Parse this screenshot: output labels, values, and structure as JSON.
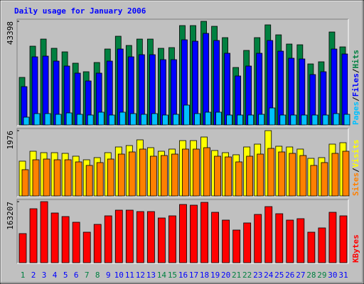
{
  "chart_data": [
    {
      "type": "bar",
      "title": "Daily usage for January 2006",
      "categories": [
        "1",
        "2",
        "3",
        "4",
        "5",
        "6",
        "7",
        "8",
        "9",
        "10",
        "11",
        "12",
        "13",
        "14",
        "15",
        "16",
        "17",
        "18",
        "19",
        "20",
        "21",
        "22",
        "23",
        "24",
        "25",
        "26",
        "27",
        "28",
        "29",
        "30",
        "31"
      ],
      "ylim": [
        0,
        43398
      ],
      "yticks": [
        43398
      ],
      "legend_separator": "/",
      "series": [
        {
          "name": "Hits",
          "color": "#008040",
          "values": [
            19913,
            32990,
            35960,
            32100,
            30610,
            25860,
            22290,
            26150,
            31800,
            37150,
            33290,
            35960,
            35960,
            32100,
            32390,
            41610,
            41610,
            43398,
            41310,
            36560,
            24070,
            31210,
            36560,
            41910,
            37740,
            33880,
            33580,
            25560,
            26450,
            38930,
            32690
          ]
        },
        {
          "name": "Files",
          "color": "#0000ff",
          "values": [
            16050,
            28530,
            28830,
            26750,
            24670,
            21700,
            18430,
            21700,
            26750,
            31800,
            28530,
            29420,
            29420,
            27340,
            27340,
            35660,
            35070,
            38340,
            35370,
            30020,
            20510,
            24670,
            30020,
            35370,
            30910,
            27940,
            27640,
            21100,
            22290,
            31800,
            29720
          ]
        },
        {
          "name": "Pages",
          "color": "#00c0ff",
          "values": [
            3270,
            4760,
            4760,
            4460,
            5050,
            4460,
            4160,
            5350,
            4160,
            5350,
            4760,
            4460,
            4760,
            4160,
            4460,
            8320,
            4760,
            5350,
            5350,
            4160,
            4160,
            4160,
            4460,
            7130,
            4160,
            4160,
            4160,
            4160,
            4160,
            4760,
            4460
          ]
        }
      ]
    },
    {
      "type": "bar",
      "categories": [
        "1",
        "2",
        "3",
        "4",
        "5",
        "6",
        "7",
        "8",
        "9",
        "10",
        "11",
        "12",
        "13",
        "14",
        "15",
        "16",
        "17",
        "18",
        "19",
        "20",
        "21",
        "22",
        "23",
        "24",
        "25",
        "26",
        "27",
        "28",
        "29",
        "30",
        "31"
      ],
      "ylim": [
        0,
        1976
      ],
      "yticks": [
        1976
      ],
      "legend_separator": "/",
      "series": [
        {
          "name": "Visits",
          "color": "#ffff00",
          "values": [
            1053,
            1353,
            1310,
            1310,
            1289,
            1203,
            1095,
            1160,
            1310,
            1482,
            1525,
            1697,
            1461,
            1353,
            1418,
            1675,
            1675,
            1783,
            1375,
            1310,
            1246,
            1482,
            1568,
            1976,
            1504,
            1482,
            1418,
            1138,
            1160,
            1568,
            1611
          ]
        },
        {
          "name": "Sites",
          "color": "#ff8000",
          "values": [
            795,
            1095,
            1117,
            1095,
            1095,
            1031,
            924,
            1010,
            1117,
            1267,
            1332,
            1418,
            1203,
            1224,
            1267,
            1418,
            1418,
            1461,
            1203,
            1181,
            1031,
            1203,
            1267,
            1439,
            1332,
            1289,
            1224,
            924,
            1010,
            1289,
            1353
          ]
        }
      ]
    },
    {
      "type": "bar",
      "categories": [
        "1",
        "2",
        "3",
        "4",
        "5",
        "6",
        "7",
        "8",
        "9",
        "10",
        "11",
        "12",
        "13",
        "14",
        "15",
        "16",
        "17",
        "18",
        "19",
        "20",
        "21",
        "22",
        "23",
        "24",
        "25",
        "26",
        "27",
        "28",
        "29",
        "30",
        "31"
      ],
      "category_colors": [
        "#008040",
        "#0000ff",
        "#0000ff",
        "#0000ff",
        "#0000ff",
        "#0000ff",
        "#008040",
        "#008040",
        "#0000ff",
        "#0000ff",
        "#0000ff",
        "#0000ff",
        "#0000ff",
        "#008040",
        "#008040",
        "#0000ff",
        "#0000ff",
        "#0000ff",
        "#0000ff",
        "#0000ff",
        "#008040",
        "#008040",
        "#0000ff",
        "#0000ff",
        "#0000ff",
        "#0000ff",
        "#0000ff",
        "#008040",
        "#008040",
        "#0000ff",
        "#0000ff"
      ],
      "ylim": [
        0,
        163207
      ],
      "yticks": [
        163207
      ],
      "series": [
        {
          "name": "KBytes",
          "color": "#ff0000",
          "values": [
            77820,
            144250,
            163207,
            132860,
            123370,
            108190,
            81610,
            102490,
            125270,
            140450,
            140450,
            136660,
            136660,
            119570,
            125270,
            155640,
            153740,
            161330,
            134760,
            113880,
            87310,
            106290,
            129060,
            149940,
            130960,
            113880,
            117680,
            81610,
            93000,
            134760,
            125270
          ]
        }
      ]
    }
  ]
}
